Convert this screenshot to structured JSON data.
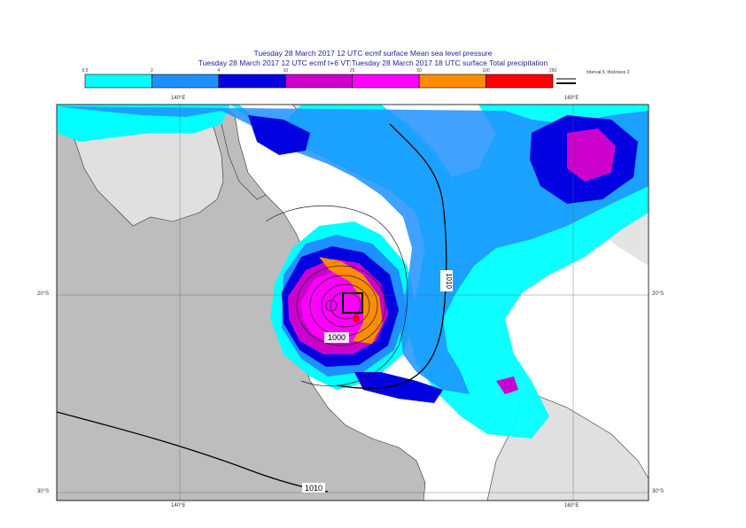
{
  "titles": {
    "line1": "Tuesday 28 March 2017 12 UTC ecmf surface  Mean sea level pressure",
    "line2": "Tuesday 28 March 2017 12 UTC ecmf t+6 VT:Tuesday 28 March 2017 18 UTC surface  Total precipitation"
  },
  "legend": {
    "ticks": [
      "0.5",
      "2",
      "4",
      "10",
      "25",
      "50",
      "100",
      "250"
    ],
    "colors": [
      "#00ffff",
      "#1e90ff",
      "#0000e0",
      "#cc00cc",
      "#ff00ff",
      "#ff8c00",
      "#ff0000"
    ],
    "note": "Interval 5, thickness 2"
  },
  "axes": {
    "lon_top": [
      "140°E",
      "160°E"
    ],
    "lon_bottom": [
      "140°E",
      "160°E"
    ],
    "lat_left": [
      "20°S",
      "30°S"
    ],
    "lat_right": [
      "20°S",
      "30°S"
    ]
  },
  "isobars": {
    "label_1010_a": "1010",
    "label_1010_b": "1010",
    "label_1000": "1000"
  },
  "colors": {
    "ocean": "#ffffff",
    "land": "#b8b8b8",
    "landlight": "#d0d0d0",
    "frame": "#000000"
  }
}
